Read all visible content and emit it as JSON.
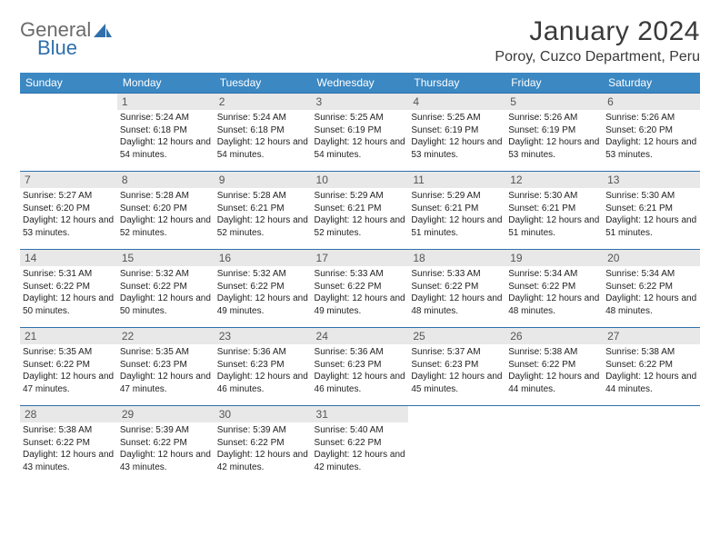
{
  "logo": {
    "text1": "General",
    "text2": "Blue"
  },
  "title": {
    "month": "January 2024",
    "location": "Poroy, Cuzco Department, Peru"
  },
  "styling": {
    "header_bg": "#3b88c3",
    "header_text": "#ffffff",
    "daynum_bg": "#e8e8e8",
    "border_color": "#2f6fab",
    "body_font_size": 10,
    "header_font_size": 12,
    "title_font_size": 30
  },
  "weekdays": [
    "Sunday",
    "Monday",
    "Tuesday",
    "Wednesday",
    "Thursday",
    "Friday",
    "Saturday"
  ],
  "weeks": [
    [
      null,
      {
        "n": "1",
        "sr": "5:24 AM",
        "ss": "6:18 PM",
        "dl": "12 hours and 54 minutes."
      },
      {
        "n": "2",
        "sr": "5:24 AM",
        "ss": "6:18 PM",
        "dl": "12 hours and 54 minutes."
      },
      {
        "n": "3",
        "sr": "5:25 AM",
        "ss": "6:19 PM",
        "dl": "12 hours and 54 minutes."
      },
      {
        "n": "4",
        "sr": "5:25 AM",
        "ss": "6:19 PM",
        "dl": "12 hours and 53 minutes."
      },
      {
        "n": "5",
        "sr": "5:26 AM",
        "ss": "6:19 PM",
        "dl": "12 hours and 53 minutes."
      },
      {
        "n": "6",
        "sr": "5:26 AM",
        "ss": "6:20 PM",
        "dl": "12 hours and 53 minutes."
      }
    ],
    [
      {
        "n": "7",
        "sr": "5:27 AM",
        "ss": "6:20 PM",
        "dl": "12 hours and 53 minutes."
      },
      {
        "n": "8",
        "sr": "5:28 AM",
        "ss": "6:20 PM",
        "dl": "12 hours and 52 minutes."
      },
      {
        "n": "9",
        "sr": "5:28 AM",
        "ss": "6:21 PM",
        "dl": "12 hours and 52 minutes."
      },
      {
        "n": "10",
        "sr": "5:29 AM",
        "ss": "6:21 PM",
        "dl": "12 hours and 52 minutes."
      },
      {
        "n": "11",
        "sr": "5:29 AM",
        "ss": "6:21 PM",
        "dl": "12 hours and 51 minutes."
      },
      {
        "n": "12",
        "sr": "5:30 AM",
        "ss": "6:21 PM",
        "dl": "12 hours and 51 minutes."
      },
      {
        "n": "13",
        "sr": "5:30 AM",
        "ss": "6:21 PM",
        "dl": "12 hours and 51 minutes."
      }
    ],
    [
      {
        "n": "14",
        "sr": "5:31 AM",
        "ss": "6:22 PM",
        "dl": "12 hours and 50 minutes."
      },
      {
        "n": "15",
        "sr": "5:32 AM",
        "ss": "6:22 PM",
        "dl": "12 hours and 50 minutes."
      },
      {
        "n": "16",
        "sr": "5:32 AM",
        "ss": "6:22 PM",
        "dl": "12 hours and 49 minutes."
      },
      {
        "n": "17",
        "sr": "5:33 AM",
        "ss": "6:22 PM",
        "dl": "12 hours and 49 minutes."
      },
      {
        "n": "18",
        "sr": "5:33 AM",
        "ss": "6:22 PM",
        "dl": "12 hours and 48 minutes."
      },
      {
        "n": "19",
        "sr": "5:34 AM",
        "ss": "6:22 PM",
        "dl": "12 hours and 48 minutes."
      },
      {
        "n": "20",
        "sr": "5:34 AM",
        "ss": "6:22 PM",
        "dl": "12 hours and 48 minutes."
      }
    ],
    [
      {
        "n": "21",
        "sr": "5:35 AM",
        "ss": "6:22 PM",
        "dl": "12 hours and 47 minutes."
      },
      {
        "n": "22",
        "sr": "5:35 AM",
        "ss": "6:23 PM",
        "dl": "12 hours and 47 minutes."
      },
      {
        "n": "23",
        "sr": "5:36 AM",
        "ss": "6:23 PM",
        "dl": "12 hours and 46 minutes."
      },
      {
        "n": "24",
        "sr": "5:36 AM",
        "ss": "6:23 PM",
        "dl": "12 hours and 46 minutes."
      },
      {
        "n": "25",
        "sr": "5:37 AM",
        "ss": "6:23 PM",
        "dl": "12 hours and 45 minutes."
      },
      {
        "n": "26",
        "sr": "5:38 AM",
        "ss": "6:22 PM",
        "dl": "12 hours and 44 minutes."
      },
      {
        "n": "27",
        "sr": "5:38 AM",
        "ss": "6:22 PM",
        "dl": "12 hours and 44 minutes."
      }
    ],
    [
      {
        "n": "28",
        "sr": "5:38 AM",
        "ss": "6:22 PM",
        "dl": "12 hours and 43 minutes."
      },
      {
        "n": "29",
        "sr": "5:39 AM",
        "ss": "6:22 PM",
        "dl": "12 hours and 43 minutes."
      },
      {
        "n": "30",
        "sr": "5:39 AM",
        "ss": "6:22 PM",
        "dl": "12 hours and 42 minutes."
      },
      {
        "n": "31",
        "sr": "5:40 AM",
        "ss": "6:22 PM",
        "dl": "12 hours and 42 minutes."
      },
      null,
      null,
      null
    ]
  ],
  "labels": {
    "sunrise": "Sunrise:",
    "sunset": "Sunset:",
    "daylight": "Daylight:"
  }
}
